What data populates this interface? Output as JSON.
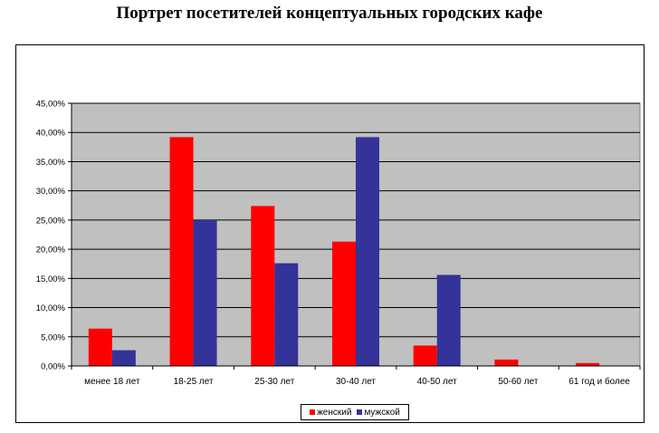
{
  "chart_data": {
    "type": "bar",
    "title": "Портрет посетителей концептуальных городских кафе",
    "categories": [
      "менее 18 лет",
      "18-25 лет",
      "25-30 лет",
      "30-40 лет",
      "40-50 лет",
      "50-60 лет",
      "61 год и более"
    ],
    "series": [
      {
        "name": "женский",
        "color": "#ff0000",
        "values": [
          6.4,
          39.2,
          27.4,
          21.3,
          3.5,
          1.1,
          0.5
        ]
      },
      {
        "name": "мужской",
        "color": "#333399",
        "values": [
          2.7,
          25.0,
          17.6,
          39.2,
          15.6,
          0,
          0
        ]
      }
    ],
    "ylim": [
      0,
      45
    ],
    "yticks": [
      "0,00%",
      "5,00%",
      "10,00%",
      "15,00%",
      "20,00%",
      "25,00%",
      "30,00%",
      "35,00%",
      "40,00%",
      "45,00%"
    ],
    "plot_background": "#c0c0c0",
    "grid": true,
    "legend_position": "bottom"
  }
}
